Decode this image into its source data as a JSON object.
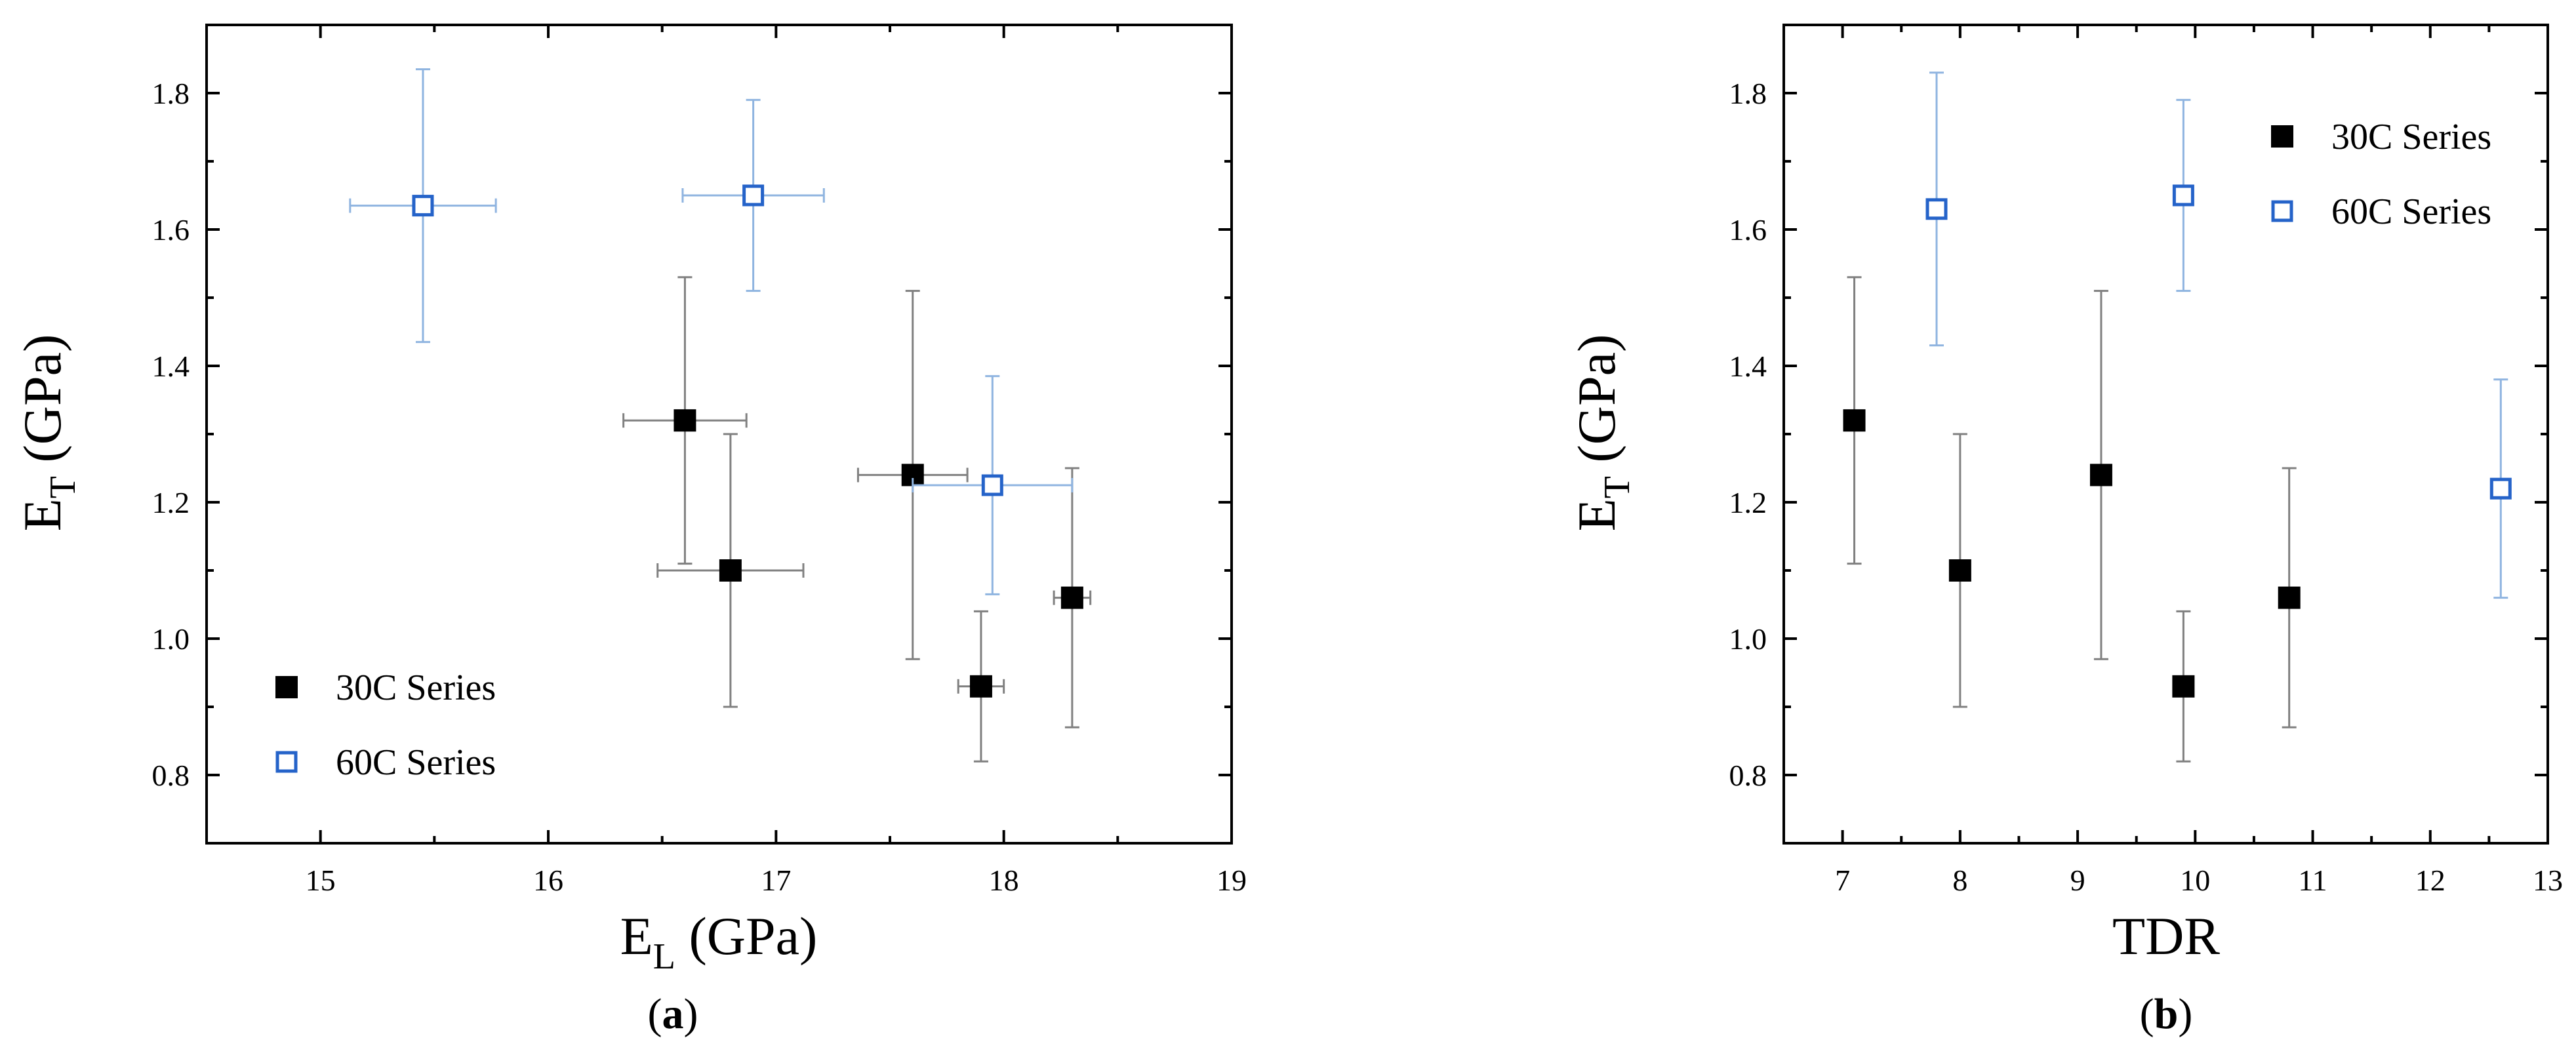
{
  "chart_data": [
    {
      "type": "scatter",
      "panel_label": "a",
      "xlabel": "E",
      "xlabel_sub": "L",
      "xlabel_unit": " (GPa)",
      "ylabel": "E",
      "ylabel_sub": "T",
      "ylabel_unit": " (GPa)",
      "xlim": [
        14.5,
        19
      ],
      "ylim": [
        0.7,
        1.9
      ],
      "xticks": [
        15,
        16,
        17,
        18,
        19
      ],
      "yticks": [
        0.8,
        1.0,
        1.2,
        1.4,
        1.6,
        1.8
      ],
      "ytick_labels": [
        "0.8",
        "1.0",
        "1.2",
        "1.4",
        "1.6",
        "1.8"
      ],
      "legend_position": "bottom-left",
      "series": [
        {
          "name": "30C Series",
          "marker": "filled-square",
          "color": "#000000",
          "errcolor": "#808080",
          "points": [
            {
              "x": 16.6,
              "y": 1.32,
              "xerr": 0.27,
              "yerr": 0.21
            },
            {
              "x": 16.8,
              "y": 1.1,
              "xerr": 0.32,
              "yerr": 0.2
            },
            {
              "x": 17.6,
              "y": 1.24,
              "xerr": 0.24,
              "yerr": 0.27
            },
            {
              "x": 17.9,
              "y": 0.93,
              "xerr": 0.1,
              "yerr": 0.11
            },
            {
              "x": 18.3,
              "y": 1.06,
              "xerr": 0.08,
              "yerr": 0.19
            }
          ]
        },
        {
          "name": "60C Series",
          "marker": "open-square",
          "color": "#2563c9",
          "errcolor": "#8fb4e0",
          "points": [
            {
              "x": 15.45,
              "y": 1.635,
              "xerr": 0.32,
              "yerr": 0.2
            },
            {
              "x": 16.9,
              "y": 1.65,
              "xerr": 0.31,
              "yerr": 0.14
            },
            {
              "x": 17.95,
              "y": 1.225,
              "xerr": 0.35,
              "yerr": 0.16
            }
          ]
        }
      ]
    },
    {
      "type": "scatter",
      "panel_label": "b",
      "xlabel": "TDR",
      "xlabel_sub": "",
      "xlabel_unit": "",
      "ylabel": "E",
      "ylabel_sub": "T",
      "ylabel_unit": " (GPa)",
      "xlim": [
        6.5,
        13
      ],
      "ylim": [
        0.7,
        1.9
      ],
      "xticks": [
        7,
        8,
        9,
        10,
        11,
        12,
        13
      ],
      "yticks": [
        0.8,
        1.0,
        1.2,
        1.4,
        1.6,
        1.8
      ],
      "ytick_labels": [
        "0.8",
        "1.0",
        "1.2",
        "1.4",
        "1.6",
        "1.8"
      ],
      "legend_position": "top-right",
      "series": [
        {
          "name": "30C Series",
          "marker": "filled-square",
          "color": "#000000",
          "errcolor": "#808080",
          "points": [
            {
              "x": 7.1,
              "y": 1.32,
              "xerr": 0,
              "yerr": 0.21
            },
            {
              "x": 8.0,
              "y": 1.1,
              "xerr": 0,
              "yerr": 0.2
            },
            {
              "x": 9.2,
              "y": 1.24,
              "xerr": 0,
              "yerr": 0.27
            },
            {
              "x": 9.9,
              "y": 0.93,
              "xerr": 0,
              "yerr": 0.11
            },
            {
              "x": 10.8,
              "y": 1.06,
              "xerr": 0,
              "yerr": 0.19
            }
          ]
        },
        {
          "name": "60C Series",
          "marker": "open-square",
          "color": "#2563c9",
          "errcolor": "#8fb4e0",
          "points": [
            {
              "x": 7.8,
              "y": 1.63,
              "xerr": 0,
              "yerr": 0.2
            },
            {
              "x": 9.9,
              "y": 1.65,
              "xerr": 0,
              "yerr": 0.14
            },
            {
              "x": 12.6,
              "y": 1.22,
              "xerr": 0,
              "yerr": 0.16
            }
          ]
        }
      ]
    }
  ]
}
